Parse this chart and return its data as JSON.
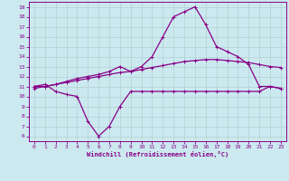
{
  "xlabel": "Windchill (Refroidissement éolien,°C)",
  "xlim_left": -0.5,
  "xlim_right": 23.5,
  "ylim_bottom": 5.5,
  "ylim_top": 19.5,
  "xticks": [
    0,
    1,
    2,
    3,
    4,
    5,
    6,
    7,
    8,
    9,
    10,
    11,
    12,
    13,
    14,
    15,
    16,
    17,
    18,
    19,
    20,
    21,
    22,
    23
  ],
  "yticks": [
    6,
    7,
    8,
    9,
    10,
    11,
    12,
    13,
    14,
    15,
    16,
    17,
    18,
    19
  ],
  "bg_color": "#cce9f0",
  "line_color": "#880088",
  "grid_color": "#aacccc",
  "line1_x": [
    0,
    1,
    2,
    3,
    4,
    5,
    6,
    7,
    8,
    9,
    10,
    11,
    12,
    13,
    14,
    15,
    16,
    17,
    18,
    19,
    20,
    21,
    22,
    23
  ],
  "line1_y": [
    11.0,
    11.2,
    10.5,
    10.2,
    10.0,
    7.5,
    6.0,
    7.0,
    9.0,
    10.5,
    10.5,
    10.5,
    10.5,
    10.5,
    10.5,
    10.5,
    10.5,
    10.5,
    10.5,
    10.5,
    10.5,
    10.5,
    11.0,
    10.8
  ],
  "line2_x": [
    0,
    1,
    2,
    3,
    4,
    5,
    6,
    7,
    8,
    9,
    10,
    11,
    12,
    13,
    14,
    15,
    16,
    17,
    18,
    19,
    20,
    21,
    22,
    23
  ],
  "line2_y": [
    11.0,
    11.0,
    11.2,
    11.5,
    11.8,
    12.0,
    12.2,
    12.5,
    13.0,
    12.5,
    13.0,
    14.0,
    16.0,
    18.0,
    18.5,
    19.0,
    17.2,
    15.0,
    14.5,
    14.0,
    13.2,
    11.0,
    11.0,
    10.8
  ],
  "line3_x": [
    0,
    1,
    2,
    3,
    4,
    5,
    6,
    7,
    8,
    9,
    10,
    11,
    12,
    13,
    14,
    15,
    16,
    17,
    18,
    19,
    20,
    21,
    22,
    23
  ],
  "line3_y": [
    10.8,
    11.0,
    11.2,
    11.4,
    11.6,
    11.8,
    12.0,
    12.2,
    12.4,
    12.5,
    12.7,
    12.9,
    13.1,
    13.3,
    13.5,
    13.6,
    13.7,
    13.7,
    13.6,
    13.5,
    13.4,
    13.2,
    13.0,
    12.9
  ]
}
